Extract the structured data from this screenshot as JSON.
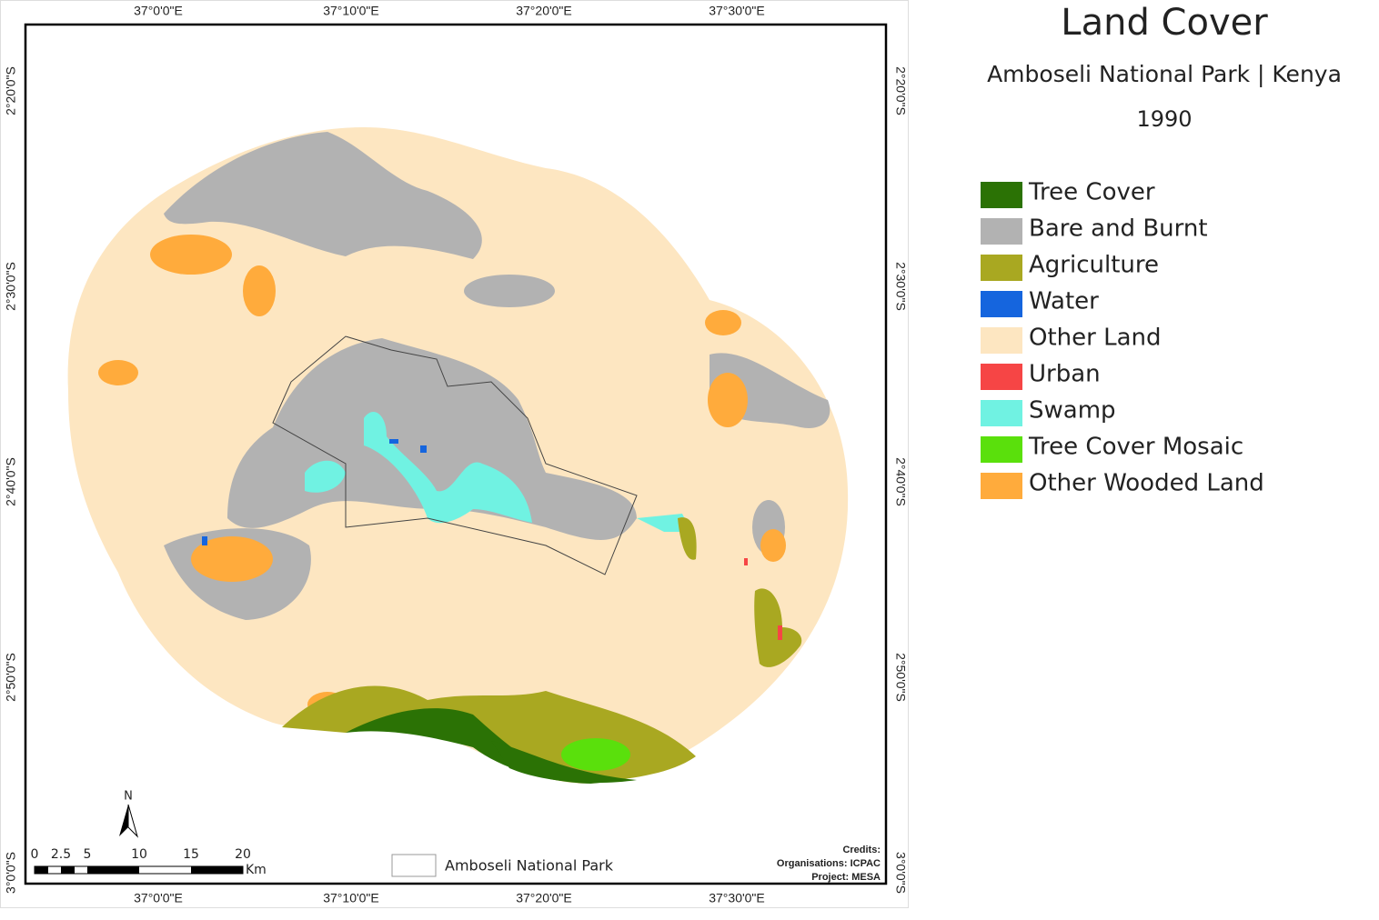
{
  "title": "Land Cover",
  "subtitle": "Amboseli National Park | Kenya",
  "year": "1990",
  "legend": [
    {
      "label": "Tree Cover",
      "color": "#2b7205"
    },
    {
      "label": "Bare and Burnt",
      "color": "#b2b2b2"
    },
    {
      "label": "Agriculture",
      "color": "#a9a821"
    },
    {
      "label": "Water",
      "color": "#1565de"
    },
    {
      "label": "Other Land",
      "color": "#fde6c1"
    },
    {
      "label": "Urban",
      "color": "#f64545"
    },
    {
      "label": "Swamp",
      "color": "#70f2e2"
    },
    {
      "label": "Tree Cover Mosaic",
      "color": "#5ae00c"
    },
    {
      "label": "Other Wooded Land",
      "color": "#ffab3c"
    }
  ],
  "graticule": {
    "top": [
      "37°0'0\"E",
      "37°10'0\"E",
      "37°20'0\"E",
      "37°30'0\"E"
    ],
    "bottom": [
      "37°0'0\"E",
      "37°10'0\"E",
      "37°20'0\"E",
      "37°30'0\"E"
    ],
    "left": [
      "2°20'0\"S",
      "2°30'0\"S",
      "2°40'0\"S",
      "2°50'0\"S",
      "3°0'0\"S"
    ],
    "right": [
      "2°20'0\"S",
      "2°30'0\"S",
      "2°40'0\"S",
      "2°50'0\"S",
      "3°0'0\"S"
    ]
  },
  "north_arrow": "N",
  "scale_bar": {
    "ticks": [
      "0",
      "2.5",
      "5",
      "10",
      "15",
      "20"
    ],
    "unit": "Km"
  },
  "park_legend": "Amboseli National Park",
  "credits": [
    "Credits:",
    "Organisations: ICPAC",
    "Project: MESA"
  ]
}
